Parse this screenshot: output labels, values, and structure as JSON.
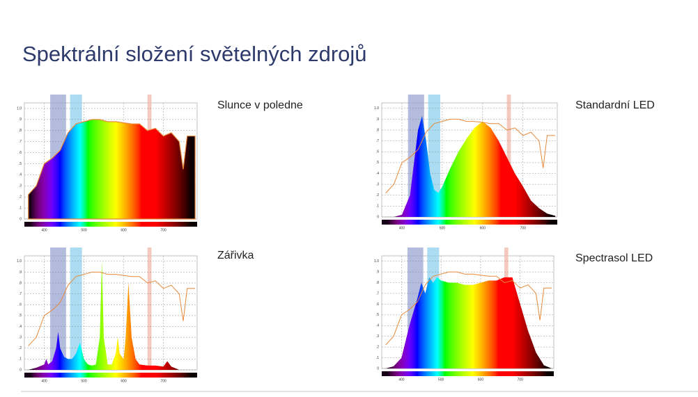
{
  "title": "Spektrální složení světelných zdrojů",
  "chart_data": [
    {
      "type": "area",
      "title": "Slunce v poledne",
      "xlim": [
        350,
        785
      ],
      "ylim": [
        0,
        1.05
      ],
      "xticks": [
        400,
        500,
        600,
        700
      ],
      "yticks": [
        0,
        {
          "value": 0.1,
          "label": ".1"
        },
        {
          "value": 0.2,
          "label": ".2"
        },
        {
          "value": 0.3,
          "label": ".3"
        },
        {
          "value": 0.4,
          "label": ".4"
        },
        {
          "value": 0.5,
          "label": ".5"
        },
        {
          "value": 0.6,
          "label": ".6"
        },
        {
          "value": 0.7,
          "label": ".7"
        },
        {
          "value": 0.8,
          "label": ".8"
        },
        {
          "value": 0.9,
          "label": ".9"
        },
        {
          "value": 1,
          "label": "1.0"
        }
      ],
      "bands": [
        {
          "range": [
            415,
            455
          ],
          "color": "#9aa6d0"
        },
        {
          "range": [
            465,
            495
          ],
          "color": "#8fd0ee"
        },
        {
          "range": [
            660,
            670
          ],
          "color": "#f2b8a8"
        }
      ],
      "series": [
        {
          "fill": "spectrum",
          "color": "#e8893a",
          "x": [
            360,
            380,
            400,
            420,
            440,
            460,
            480,
            500,
            520,
            540,
            560,
            580,
            600,
            620,
            640,
            660,
            680,
            700,
            720,
            740,
            750,
            760,
            780
          ],
          "values": [
            0.22,
            0.3,
            0.5,
            0.55,
            0.62,
            0.78,
            0.86,
            0.88,
            0.9,
            0.9,
            0.88,
            0.88,
            0.87,
            0.86,
            0.86,
            0.8,
            0.82,
            0.75,
            0.78,
            0.7,
            0.45,
            0.75,
            0.75
          ]
        }
      ]
    },
    {
      "type": "area",
      "title": "Standardní LED",
      "xlim": [
        350,
        785
      ],
      "ylim": [
        0,
        1.05
      ],
      "xticks": [
        400,
        500,
        600,
        700
      ],
      "yticks": [
        0,
        {
          "value": 0.1,
          "label": ".1"
        },
        {
          "value": 0.2,
          "label": ".2"
        },
        {
          "value": 0.3,
          "label": ".3"
        },
        {
          "value": 0.4,
          "label": ".4"
        },
        {
          "value": 0.5,
          "label": ".5"
        },
        {
          "value": 0.6,
          "label": ".6"
        },
        {
          "value": 0.7,
          "label": ".7"
        },
        {
          "value": 0.8,
          "label": ".8"
        },
        {
          "value": 0.9,
          "label": ".9"
        },
        {
          "value": 1,
          "label": "1.0"
        }
      ],
      "bands": [
        {
          "range": [
            415,
            455
          ],
          "color": "#9aa6d0"
        },
        {
          "range": [
            465,
            495
          ],
          "color": "#8fd0ee"
        },
        {
          "range": [
            660,
            670
          ],
          "color": "#f2b8a8"
        }
      ],
      "series": [
        {
          "fill": "spectrum",
          "x": [
            360,
            380,
            400,
            420,
            430,
            440,
            450,
            460,
            470,
            480,
            490,
            500,
            520,
            540,
            560,
            580,
            600,
            620,
            640,
            660,
            680,
            700,
            720,
            740,
            760,
            780
          ],
          "values": [
            0,
            0,
            0.02,
            0.2,
            0.5,
            0.8,
            0.93,
            0.7,
            0.4,
            0.25,
            0.22,
            0.28,
            0.45,
            0.6,
            0.72,
            0.82,
            0.88,
            0.82,
            0.7,
            0.55,
            0.4,
            0.28,
            0.15,
            0.08,
            0.03,
            0.01
          ]
        },
        {
          "fill": "none",
          "color": "#e8893a",
          "x": [
            360,
            380,
            400,
            420,
            440,
            460,
            480,
            500,
            520,
            540,
            560,
            580,
            600,
            620,
            640,
            660,
            680,
            700,
            720,
            740,
            750,
            760,
            780
          ],
          "values": [
            0.22,
            0.3,
            0.5,
            0.55,
            0.62,
            0.78,
            0.86,
            0.88,
            0.9,
            0.9,
            0.88,
            0.88,
            0.87,
            0.86,
            0.86,
            0.8,
            0.82,
            0.75,
            0.78,
            0.7,
            0.45,
            0.75,
            0.75
          ]
        }
      ]
    },
    {
      "type": "area",
      "title": "Zářivka",
      "xlim": [
        350,
        785
      ],
      "ylim": [
        0,
        1.05
      ],
      "xticks": [
        400,
        500,
        600,
        700
      ],
      "yticks": [
        0,
        {
          "value": 0.1,
          "label": ".1"
        },
        {
          "value": 0.2,
          "label": ".2"
        },
        {
          "value": 0.3,
          "label": ".3"
        },
        {
          "value": 0.4,
          "label": ".4"
        },
        {
          "value": 0.5,
          "label": ".5"
        },
        {
          "value": 0.6,
          "label": ".6"
        },
        {
          "value": 0.7,
          "label": ".7"
        },
        {
          "value": 0.8,
          "label": ".8"
        },
        {
          "value": 0.9,
          "label": ".9"
        },
        {
          "value": 1,
          "label": "1.0"
        }
      ],
      "bands": [
        {
          "range": [
            415,
            455
          ],
          "color": "#9aa6d0"
        },
        {
          "range": [
            465,
            495
          ],
          "color": "#8fd0ee"
        },
        {
          "range": [
            660,
            670
          ],
          "color": "#f2b8a8"
        }
      ],
      "series": [
        {
          "fill": "spectrum",
          "x": [
            360,
            380,
            400,
            405,
            410,
            420,
            430,
            435,
            440,
            450,
            460,
            470,
            480,
            490,
            500,
            510,
            520,
            530,
            540,
            545,
            550,
            560,
            570,
            580,
            585,
            590,
            600,
            605,
            612,
            620,
            630,
            640,
            660,
            680,
            700,
            710,
            720,
            740,
            760,
            780
          ],
          "values": [
            0,
            0.02,
            0.05,
            0.1,
            0.05,
            0.08,
            0.2,
            0.35,
            0.2,
            0.12,
            0.1,
            0.1,
            0.15,
            0.25,
            0.1,
            0.05,
            0.04,
            0.05,
            0.3,
            1.0,
            0.3,
            0.05,
            0.05,
            0.15,
            0.3,
            0.15,
            0.1,
            0.3,
            0.8,
            0.3,
            0.1,
            0.05,
            0.04,
            0.04,
            0.03,
            0.08,
            0.03,
            0,
            0,
            0
          ]
        },
        {
          "fill": "none",
          "color": "#e8893a",
          "x": [
            360,
            380,
            400,
            420,
            440,
            460,
            480,
            500,
            520,
            540,
            560,
            580,
            600,
            620,
            640,
            660,
            680,
            700,
            720,
            740,
            750,
            760,
            780
          ],
          "values": [
            0.22,
            0.3,
            0.5,
            0.55,
            0.62,
            0.78,
            0.86,
            0.88,
            0.9,
            0.9,
            0.88,
            0.88,
            0.87,
            0.86,
            0.86,
            0.8,
            0.82,
            0.75,
            0.78,
            0.7,
            0.45,
            0.75,
            0.75
          ]
        }
      ]
    },
    {
      "type": "area",
      "title": "Spectrasol LED",
      "xlim": [
        350,
        785
      ],
      "ylim": [
        0,
        1.05
      ],
      "xticks": [
        400,
        500,
        600,
        700
      ],
      "yticks": [
        0,
        {
          "value": 0.1,
          "label": ".1"
        },
        {
          "value": 0.2,
          "label": ".2"
        },
        {
          "value": 0.3,
          "label": ".3"
        },
        {
          "value": 0.4,
          "label": ".4"
        },
        {
          "value": 0.5,
          "label": ".5"
        },
        {
          "value": 0.6,
          "label": ".6"
        },
        {
          "value": 0.7,
          "label": ".7"
        },
        {
          "value": 0.8,
          "label": ".8"
        },
        {
          "value": 0.9,
          "label": ".9"
        },
        {
          "value": 1,
          "label": "1.0"
        }
      ],
      "bands": [
        {
          "range": [
            415,
            455
          ],
          "color": "#9aa6d0"
        },
        {
          "range": [
            465,
            495
          ],
          "color": "#8fd0ee"
        },
        {
          "range": [
            660,
            670
          ],
          "color": "#f2b8a8"
        }
      ],
      "series": [
        {
          "fill": "spectrum",
          "x": [
            360,
            380,
            400,
            420,
            440,
            450,
            460,
            470,
            480,
            490,
            500,
            520,
            540,
            560,
            580,
            600,
            620,
            640,
            660,
            680,
            700,
            720,
            740,
            760,
            780
          ],
          "values": [
            0,
            0.02,
            0.1,
            0.4,
            0.65,
            0.8,
            0.7,
            0.85,
            0.8,
            0.85,
            0.82,
            0.8,
            0.8,
            0.78,
            0.78,
            0.8,
            0.82,
            0.82,
            0.85,
            0.85,
            0.6,
            0.35,
            0.15,
            0.03,
            0
          ]
        },
        {
          "fill": "none",
          "color": "#e8893a",
          "x": [
            360,
            380,
            400,
            420,
            440,
            460,
            480,
            500,
            520,
            540,
            560,
            580,
            600,
            620,
            640,
            660,
            680,
            700,
            720,
            740,
            750,
            760,
            780
          ],
          "values": [
            0.22,
            0.3,
            0.5,
            0.55,
            0.62,
            0.78,
            0.86,
            0.88,
            0.9,
            0.9,
            0.88,
            0.88,
            0.87,
            0.86,
            0.86,
            0.8,
            0.82,
            0.75,
            0.78,
            0.7,
            0.45,
            0.75,
            0.75
          ]
        }
      ]
    }
  ]
}
